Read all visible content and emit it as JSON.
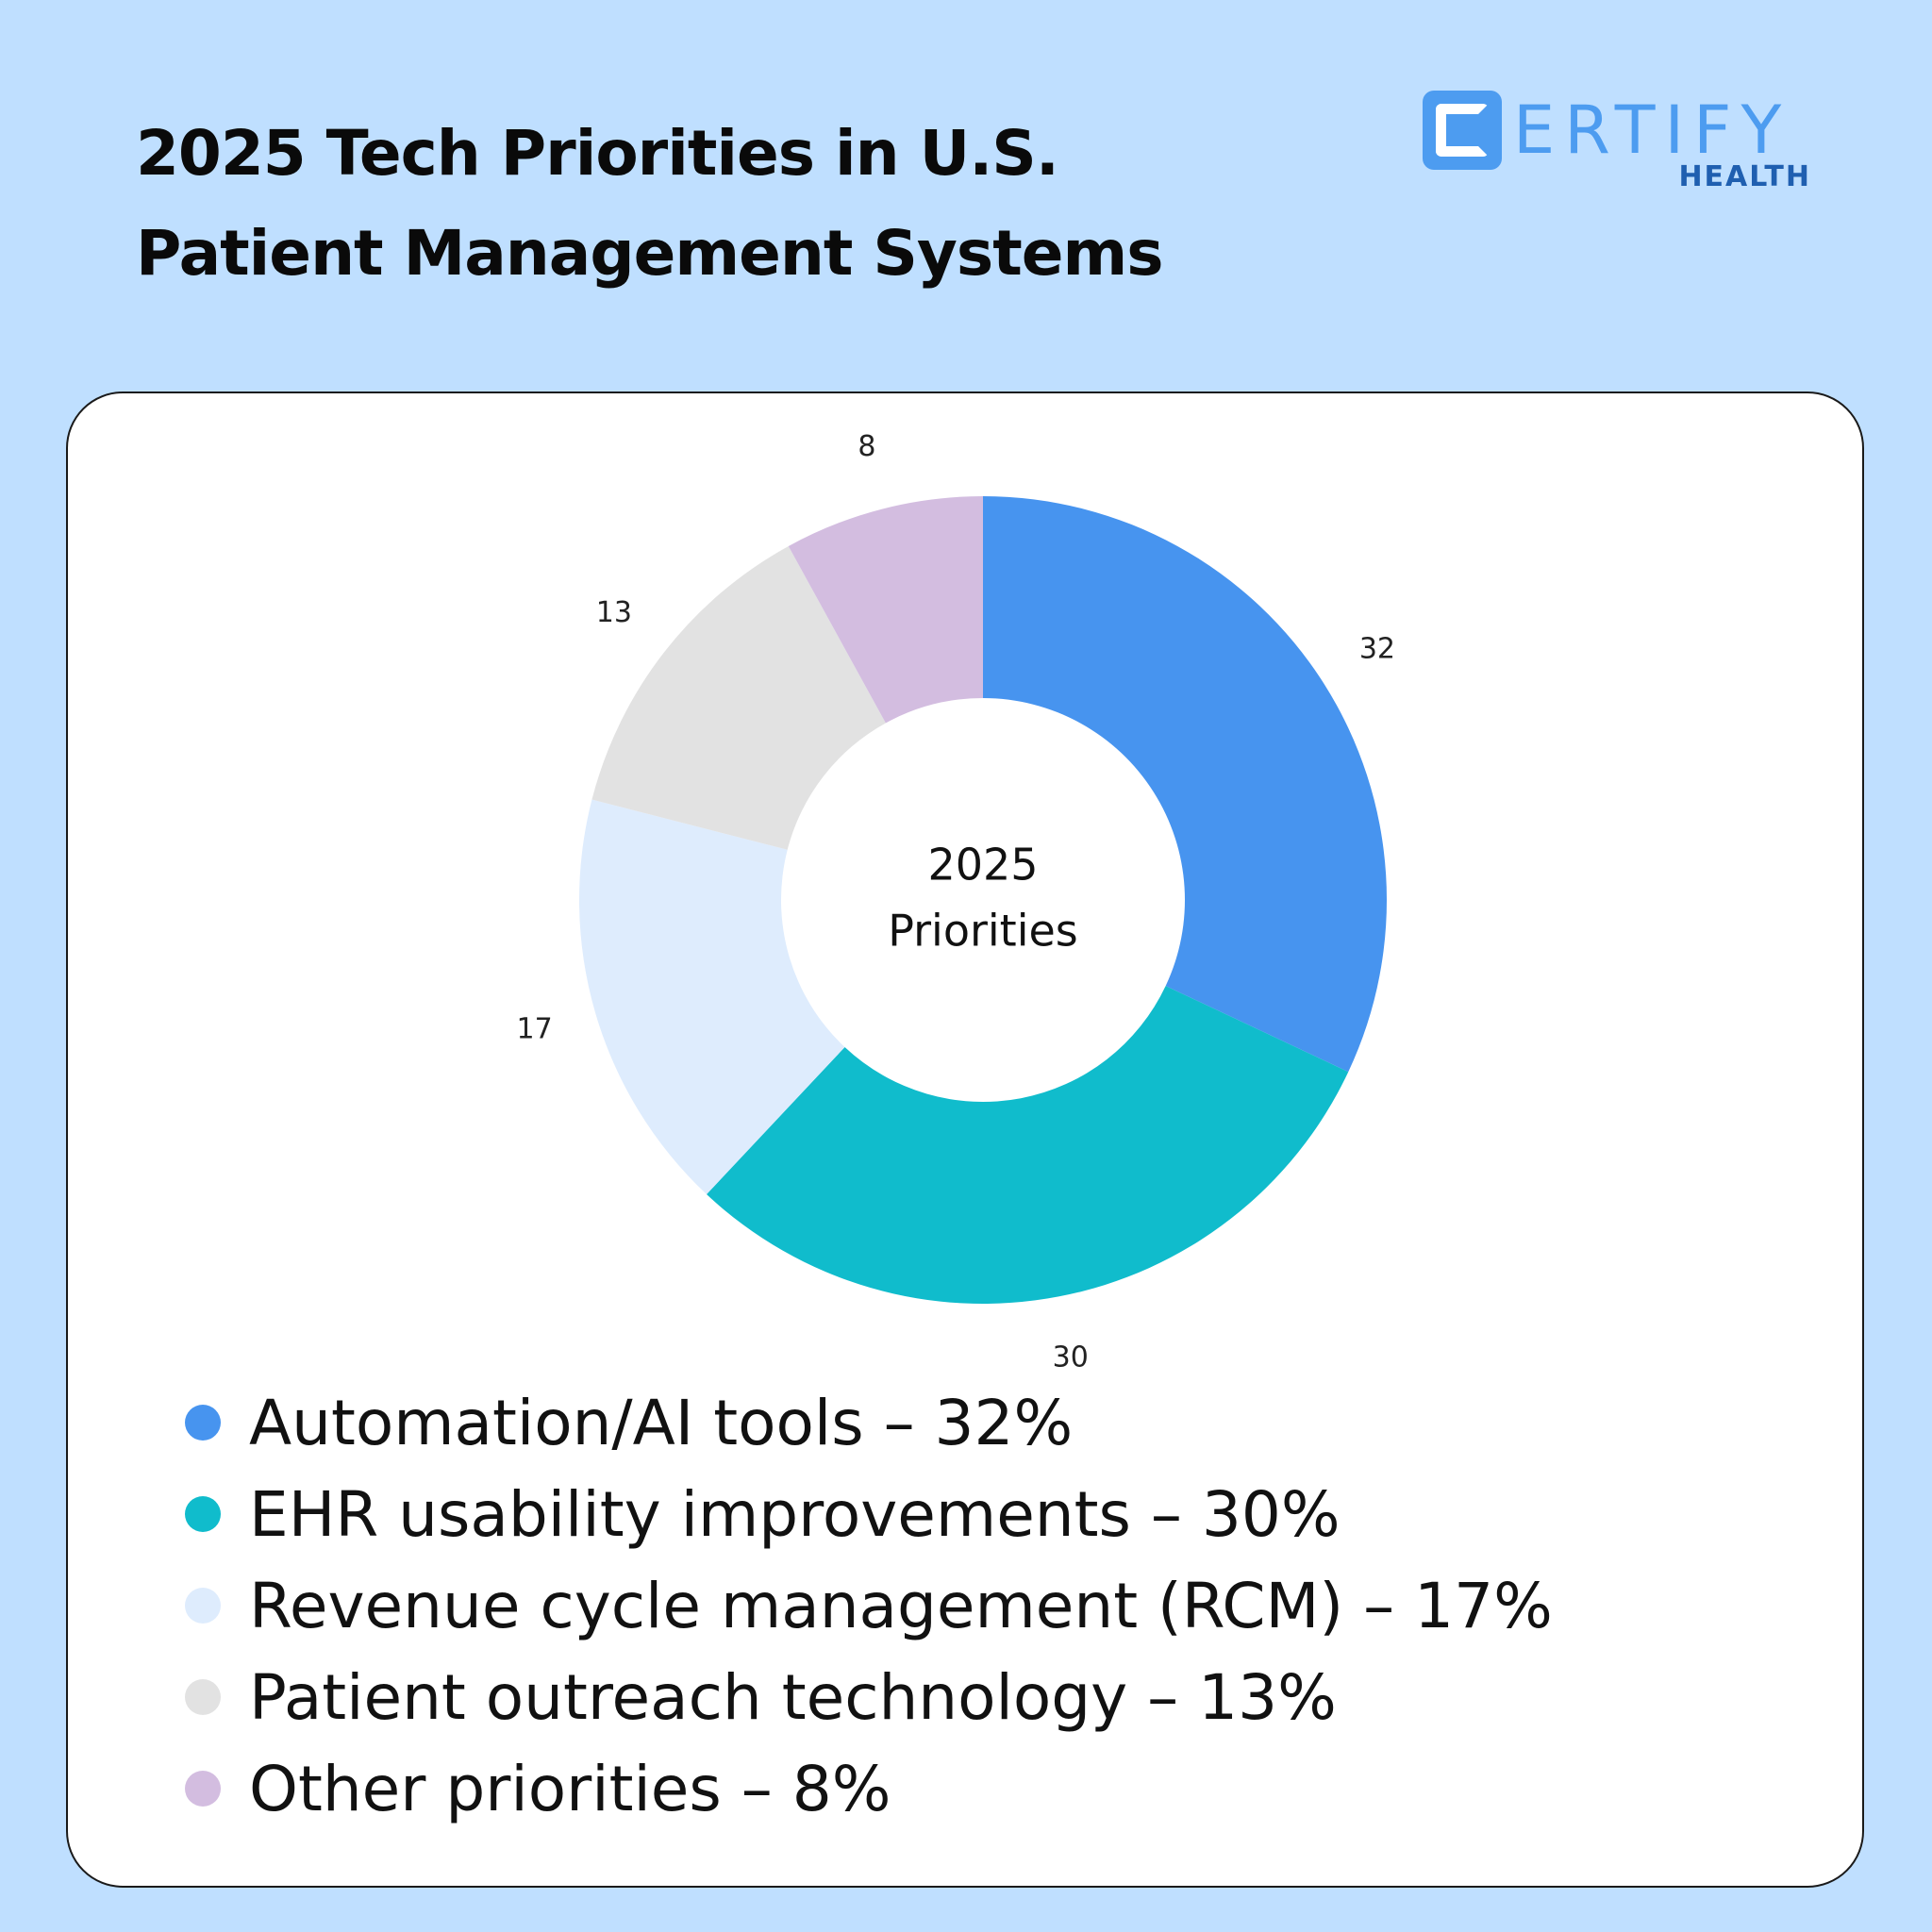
{
  "header": {
    "title_line1": "2025 Tech Priorities in U.S.",
    "title_line2": "Patient Management Systems"
  },
  "logo": {
    "word": "ERTIFY",
    "sub": "HEALTH",
    "icon": "certify-c-logo-icon",
    "color": "#4d9cf0",
    "sub_color": "#1f5fb0"
  },
  "chart_data": {
    "type": "pie",
    "donut": true,
    "center_label": [
      "2025",
      "Priorities"
    ],
    "categories": [
      "Automation/AI tools",
      "EHR usability improvements",
      "Revenue cycle management (RCM)",
      "Patient outreach technology",
      "Other priorities"
    ],
    "values": [
      32,
      30,
      17,
      13,
      8
    ],
    "colors": [
      "#4794ef",
      "#10bccc",
      "#deecfd",
      "#e2e2e2",
      "#d3bde0"
    ],
    "legend_placement": "bottom"
  },
  "legend": [
    {
      "label": "Automation/AI tools – 32%",
      "color": "#4794ef"
    },
    {
      "label": "EHR usability improvements – 30%",
      "color": "#10bccc"
    },
    {
      "label": "Revenue cycle management (RCM) – 17%",
      "color": "#deecfd"
    },
    {
      "label": "Patient outreach technology – 13%",
      "color": "#e2e2e2"
    },
    {
      "label": "Other priorities – 8%",
      "color": "#d3bde0"
    }
  ]
}
